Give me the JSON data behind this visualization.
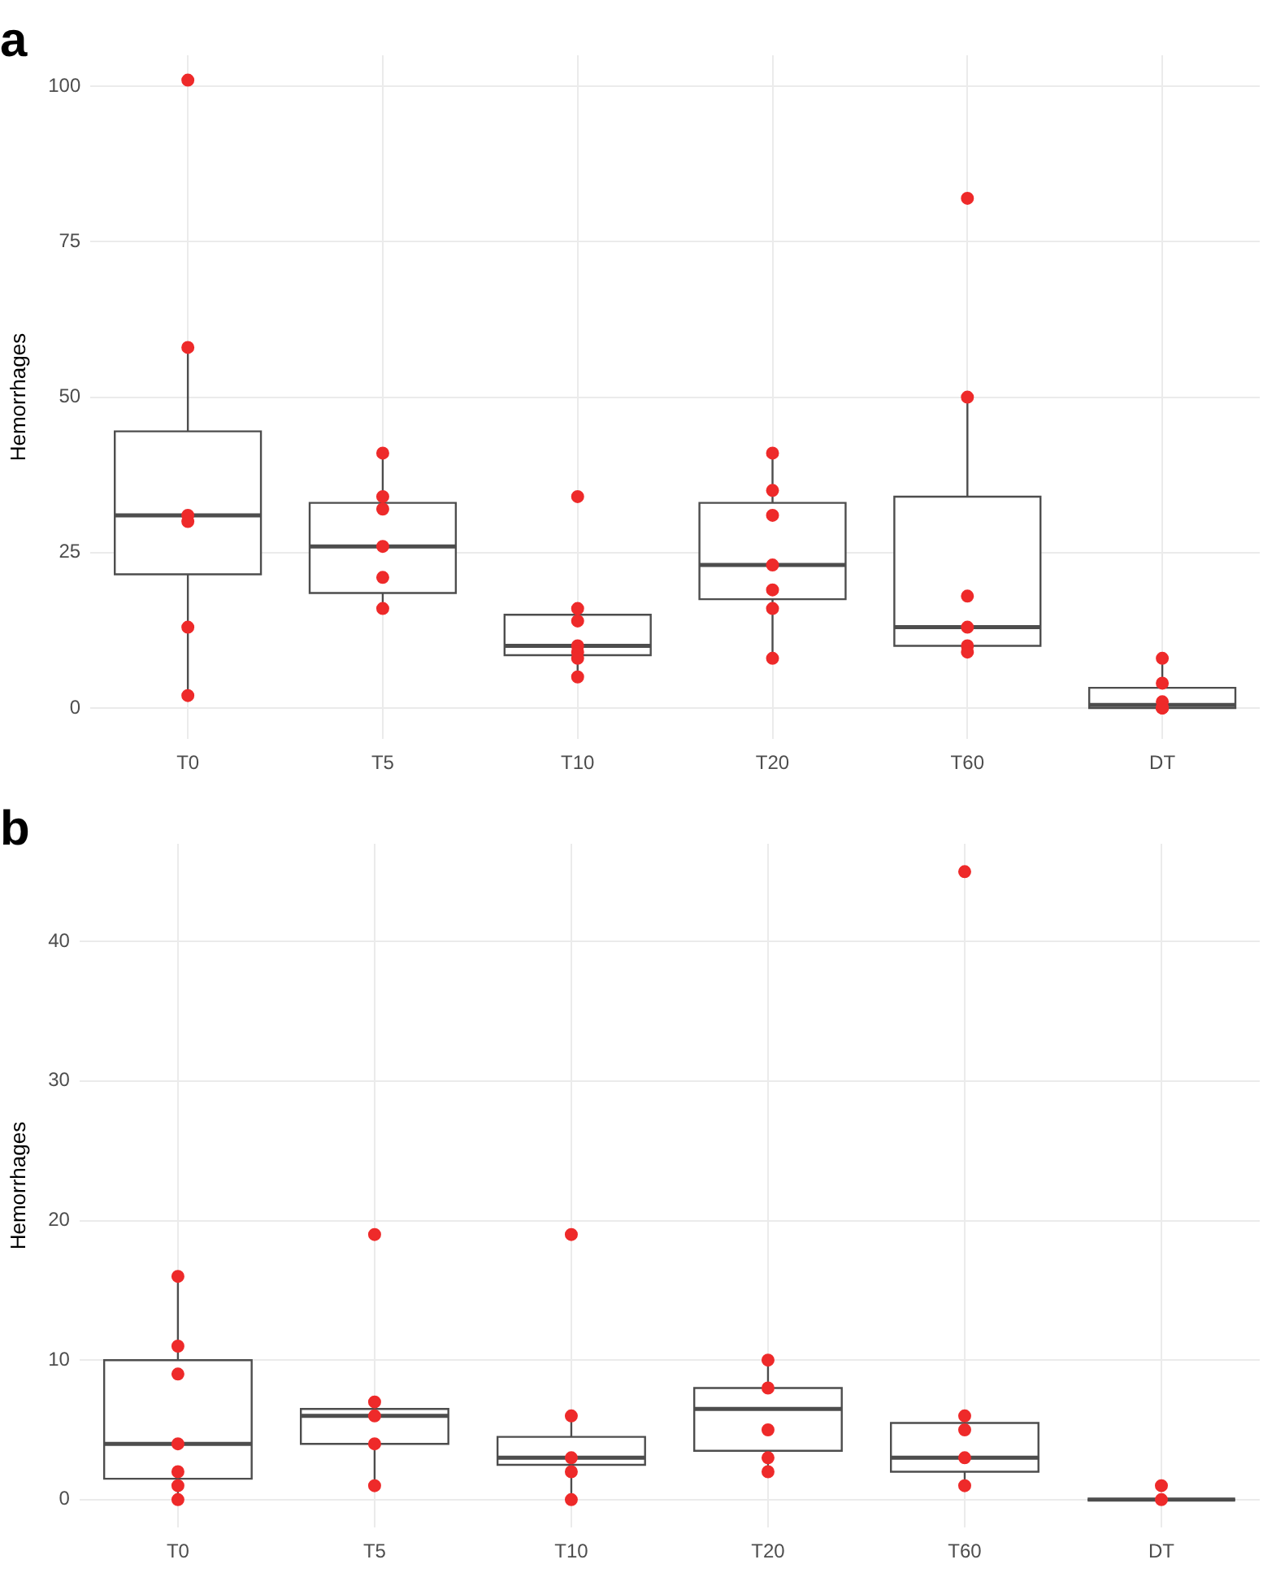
{
  "chart_data": [
    {
      "type": "box",
      "title": "a",
      "ylabel": "Hemorrhages",
      "categories": [
        "T0",
        "T5",
        "T10",
        "T20",
        "T60",
        "DT"
      ],
      "ylim": [
        -5,
        105
      ],
      "yticks": [
        0,
        25,
        50,
        75,
        100
      ],
      "grid": true,
      "series": [
        {
          "type": "box",
          "color": "#4d4d4d",
          "boxes": [
            {
              "low": 2,
              "q1": 21.5,
              "median": 31,
              "q3": 44.5,
              "high": 58
            },
            {
              "low": 16,
              "q1": 18.5,
              "median": 26,
              "q3": 33,
              "high": 41
            },
            {
              "low": 5,
              "q1": 8.5,
              "median": 10,
              "q3": 15,
              "high": 16
            },
            {
              "low": 8,
              "q1": 17.5,
              "median": 23,
              "q3": 33,
              "high": 41
            },
            {
              "low": 9,
              "q1": 10,
              "median": 13,
              "q3": 34,
              "high": 50
            },
            {
              "low": 0,
              "q1": 0,
              "median": 0.5,
              "q3": 3.25,
              "high": 8
            }
          ]
        },
        {
          "type": "scatter",
          "color": "#ee2a2a",
          "x": [
            "T0",
            "T0",
            "T0",
            "T0",
            "T0",
            "T0",
            "T5",
            "T5",
            "T5",
            "T5",
            "T5",
            "T5",
            "T10",
            "T10",
            "T10",
            "T10",
            "T10",
            "T10",
            "T10",
            "T20",
            "T20",
            "T20",
            "T20",
            "T20",
            "T20",
            "T20",
            "T60",
            "T60",
            "T60",
            "T60",
            "T60",
            "T60",
            "DT",
            "DT",
            "DT",
            "DT",
            "DT",
            "DT"
          ],
          "values": [
            101,
            58,
            31,
            30,
            13,
            2,
            41,
            34,
            32,
            26,
            21,
            16,
            34,
            16,
            14,
            10,
            9,
            8,
            5,
            41,
            35,
            31,
            23,
            19,
            16,
            8,
            82,
            50,
            18,
            13,
            10,
            9,
            8,
            4,
            1,
            0,
            0,
            0
          ]
        }
      ]
    },
    {
      "type": "box",
      "title": "b",
      "ylabel": "Hemorrhages",
      "categories": [
        "T0",
        "T5",
        "T10",
        "T20",
        "T60",
        "DT"
      ],
      "ylim": [
        -2,
        47
      ],
      "yticks": [
        0,
        10,
        20,
        30,
        40
      ],
      "grid": true,
      "series": [
        {
          "type": "box",
          "color": "#4d4d4d",
          "boxes": [
            {
              "low": 0,
              "q1": 1.5,
              "median": 4,
              "q3": 10,
              "high": 16
            },
            {
              "low": 1,
              "q1": 4,
              "median": 6,
              "q3": 6.5,
              "high": 7
            },
            {
              "low": 0,
              "q1": 2.5,
              "median": 3,
              "q3": 4.5,
              "high": 6
            },
            {
              "low": 2,
              "q1": 3.5,
              "median": 6.5,
              "q3": 8,
              "high": 10
            },
            {
              "low": 1,
              "q1": 2,
              "median": 3,
              "q3": 5.5,
              "high": 6
            },
            {
              "low": 0,
              "q1": 0,
              "median": 0,
              "q3": 0,
              "high": 0
            }
          ]
        },
        {
          "type": "scatter",
          "color": "#ee2a2a",
          "x": [
            "T0",
            "T0",
            "T0",
            "T0",
            "T0",
            "T0",
            "T0",
            "T5",
            "T5",
            "T5",
            "T5",
            "T5",
            "T10",
            "T10",
            "T10",
            "T10",
            "T10",
            "T20",
            "T20",
            "T20",
            "T20",
            "T20",
            "T60",
            "T60",
            "T60",
            "T60",
            "T60",
            "DT",
            "DT"
          ],
          "values": [
            16,
            11,
            9,
            4,
            2,
            1,
            0,
            19,
            7,
            6,
            4,
            1,
            19,
            6,
            3,
            2,
            0,
            10,
            8,
            5,
            3,
            2,
            45,
            6,
            5,
            3,
            1,
            1,
            0
          ]
        }
      ]
    }
  ]
}
